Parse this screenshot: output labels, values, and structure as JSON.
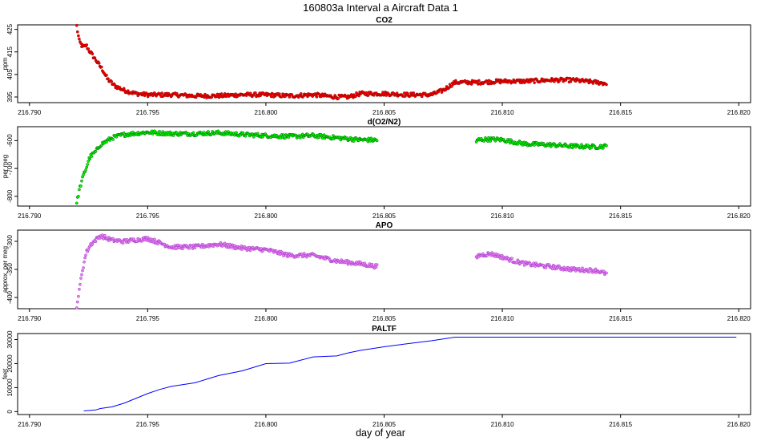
{
  "page": {
    "title": "160803a   Interval a Aircraft Data 1",
    "xlabel": "day of year"
  },
  "colors": {
    "co2": "#ff0000",
    "co2_edge": "#8b0000",
    "o2n2": "#00ff00",
    "o2n2_edge": "#006400",
    "apo": "#ee82ee",
    "apo_edge": "#9932cc",
    "paltf": "#0000ff"
  },
  "chart_data": [
    {
      "id": "co2",
      "type": "scatter",
      "title": "CO2",
      "ylabel": "ppm",
      "xlim": [
        216.7895,
        216.8205
      ],
      "ylim": [
        392.5,
        427
      ],
      "xticks": [
        "216.790",
        "216.795",
        "216.800",
        "216.805",
        "216.810",
        "216.815",
        "216.820"
      ],
      "yticks": [
        "395",
        "405",
        "415",
        "425"
      ],
      "points": [
        [
          216.792,
          426.5
        ],
        [
          216.7921,
          420
        ],
        [
          216.7922,
          418
        ],
        [
          216.7923,
          417
        ],
        [
          216.7924,
          418
        ],
        [
          216.7925,
          416
        ],
        [
          216.7927,
          413
        ],
        [
          216.7929,
          410
        ],
        [
          216.7931,
          407
        ],
        [
          216.7933,
          403
        ],
        [
          216.7936,
          400
        ],
        [
          216.794,
          398
        ],
        [
          216.7945,
          396.5
        ],
        [
          216.795,
          396
        ],
        [
          216.796,
          396
        ],
        [
          216.797,
          395.5
        ],
        [
          216.798,
          395.5
        ],
        [
          216.799,
          396
        ],
        [
          216.8,
          396
        ],
        [
          216.801,
          395.5
        ],
        [
          216.802,
          396
        ],
        [
          216.803,
          395
        ],
        [
          216.8035,
          395
        ],
        [
          216.804,
          396.5
        ],
        [
          216.805,
          396.5
        ],
        [
          216.806,
          396
        ],
        [
          216.807,
          396
        ],
        [
          216.8075,
          398
        ],
        [
          216.808,
          401.5
        ],
        [
          216.809,
          401.5
        ],
        [
          216.81,
          402
        ],
        [
          216.811,
          402
        ],
        [
          216.812,
          402.5
        ],
        [
          216.813,
          402.5
        ],
        [
          216.814,
          401.5
        ],
        [
          216.8144,
          401
        ]
      ]
    },
    {
      "id": "o2n2",
      "type": "scatter",
      "title": "d(O2/N2)",
      "ylabel": "per meg",
      "xlim": [
        216.7895,
        216.8205
      ],
      "ylim": [
        -835,
        -550
      ],
      "xticks": [
        "216.790",
        "216.795",
        "216.800",
        "216.805",
        "216.810",
        "216.815",
        "216.820"
      ],
      "yticks": [
        "-600",
        "-700",
        "-800"
      ],
      "points": [
        [
          216.792,
          -825
        ],
        [
          216.7921,
          -780
        ],
        [
          216.7922,
          -750
        ],
        [
          216.7923,
          -720
        ],
        [
          216.7924,
          -700
        ],
        [
          216.7925,
          -670
        ],
        [
          216.7926,
          -655
        ],
        [
          216.7928,
          -640
        ],
        [
          216.793,
          -615
        ],
        [
          216.7935,
          -590
        ],
        [
          216.794,
          -578
        ],
        [
          216.795,
          -570
        ],
        [
          216.796,
          -575
        ],
        [
          216.797,
          -575
        ],
        [
          216.798,
          -572
        ],
        [
          216.799,
          -578
        ],
        [
          216.8,
          -582
        ],
        [
          216.801,
          -585
        ],
        [
          216.802,
          -582
        ],
        [
          216.803,
          -590
        ],
        [
          216.804,
          -597
        ],
        [
          216.8047,
          -598
        ],
        [
          216.8089,
          -605
        ],
        [
          216.809,
          -597
        ],
        [
          216.8095,
          -595
        ],
        [
          216.81,
          -597
        ],
        [
          216.8105,
          -605
        ],
        [
          216.811,
          -612
        ],
        [
          216.812,
          -615
        ],
        [
          216.813,
          -620
        ],
        [
          216.814,
          -622
        ],
        [
          216.8144,
          -620
        ]
      ]
    },
    {
      "id": "apo",
      "type": "scatter",
      "title": "APO",
      "ylabel": "approx. per meg",
      "xlim": [
        216.7895,
        216.8205
      ],
      "ylim": [
        -420,
        -280
      ],
      "xticks": [
        "216.790",
        "216.795",
        "216.800",
        "216.805",
        "216.810",
        "216.815",
        "216.820"
      ],
      "yticks": [
        "-300",
        "-350",
        "-400"
      ],
      "points": [
        [
          216.792,
          -415
        ],
        [
          216.7921,
          -390
        ],
        [
          216.7922,
          -360
        ],
        [
          216.7923,
          -340
        ],
        [
          216.7924,
          -320
        ],
        [
          216.7926,
          -305
        ],
        [
          216.793,
          -290
        ],
        [
          216.7935,
          -298
        ],
        [
          216.794,
          -300
        ],
        [
          216.795,
          -295
        ],
        [
          216.796,
          -310
        ],
        [
          216.797,
          -310
        ],
        [
          216.798,
          -305
        ],
        [
          216.799,
          -312
        ],
        [
          216.8,
          -315
        ],
        [
          216.801,
          -325
        ],
        [
          216.802,
          -325
        ],
        [
          216.803,
          -335
        ],
        [
          216.804,
          -340
        ],
        [
          216.8047,
          -345
        ],
        [
          216.8089,
          -330
        ],
        [
          216.809,
          -325
        ],
        [
          216.8095,
          -322
        ],
        [
          216.81,
          -328
        ],
        [
          216.8105,
          -335
        ],
        [
          216.811,
          -340
        ],
        [
          216.812,
          -345
        ],
        [
          216.813,
          -350
        ],
        [
          216.814,
          -352
        ],
        [
          216.8144,
          -358
        ]
      ]
    },
    {
      "id": "paltf",
      "type": "line",
      "title": "PALTF",
      "ylabel": "feet",
      "xlim": [
        216.7895,
        216.8205
      ],
      "ylim": [
        -1200,
        32500
      ],
      "xticks": [
        "216.790",
        "216.795",
        "216.800",
        "216.805",
        "216.810",
        "216.815",
        "216.820"
      ],
      "yticks": [
        "0",
        "10000",
        "20000",
        "30000"
      ],
      "points": [
        [
          216.7923,
          300
        ],
        [
          216.7928,
          700
        ],
        [
          216.793,
          1300
        ],
        [
          216.7935,
          2000
        ],
        [
          216.794,
          3500
        ],
        [
          216.7945,
          5500
        ],
        [
          216.795,
          7500
        ],
        [
          216.7955,
          9200
        ],
        [
          216.796,
          10500
        ],
        [
          216.797,
          12000
        ],
        [
          216.7975,
          13500
        ],
        [
          216.798,
          15000
        ],
        [
          216.799,
          17000
        ],
        [
          216.7995,
          18500
        ],
        [
          216.8,
          20000
        ],
        [
          216.801,
          20200
        ],
        [
          216.8015,
          21500
        ],
        [
          216.802,
          22800
        ],
        [
          216.8025,
          23000
        ],
        [
          216.803,
          23200
        ],
        [
          216.8035,
          24500
        ],
        [
          216.804,
          25500
        ],
        [
          216.805,
          27000
        ],
        [
          216.806,
          28300
        ],
        [
          216.807,
          29500
        ],
        [
          216.808,
          31000
        ],
        [
          216.809,
          31000
        ],
        [
          216.812,
          31000
        ],
        [
          216.815,
          31000
        ],
        [
          216.818,
          31000
        ],
        [
          216.8199,
          31000
        ]
      ]
    }
  ]
}
